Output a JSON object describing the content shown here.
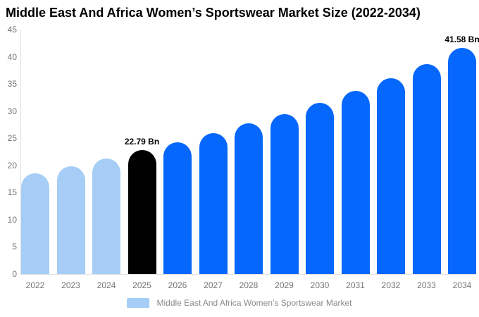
{
  "title": "Middle East And Africa Women’s Sportswear Market Size (2022-2034)",
  "legend": {
    "label": "Middle East And Africa Women’s Sportswear Market",
    "swatch_color": "#a5cdf6"
  },
  "colors": {
    "bar_light_blue": "#a5cdf6",
    "bar_black": "#000000",
    "bar_blue": "#0567fb",
    "axis_line": "#e0e0e0",
    "tick_text": "#757575",
    "legend_text": "#8a8a8a",
    "data_label_text": "#000000",
    "background": "#ffffff"
  },
  "chart_data": {
    "type": "bar",
    "title": "Middle East And Africa Women’s Sportswear Market Size (2022-2034)",
    "xlabel": "",
    "ylabel": "",
    "categories": [
      "2022",
      "2023",
      "2024",
      "2025",
      "2026",
      "2027",
      "2028",
      "2029",
      "2030",
      "2031",
      "2032",
      "2033",
      "2034"
    ],
    "values": [
      18.6,
      19.9,
      21.3,
      22.79,
      24.3,
      26.0,
      27.7,
      29.5,
      31.5,
      33.7,
      36.1,
      38.6,
      41.58
    ],
    "unit": "Bn",
    "bar_colors": [
      "#a5cdf6",
      "#a5cdf6",
      "#a5cdf6",
      "#000000",
      "#0567fb",
      "#0567fb",
      "#0567fb",
      "#0567fb",
      "#0567fb",
      "#0567fb",
      "#0567fb",
      "#0567fb",
      "#0567fb"
    ],
    "data_labels": [
      {
        "index": 3,
        "text": "22.79 Bn"
      },
      {
        "index": 12,
        "text": "41.58 Bn"
      }
    ],
    "ylim": [
      0,
      45
    ],
    "ytick_step": 5,
    "grid": false,
    "legend_position": "bottom",
    "legend_entries": [
      "Middle East And Africa Women’s Sportswear Market"
    ]
  }
}
